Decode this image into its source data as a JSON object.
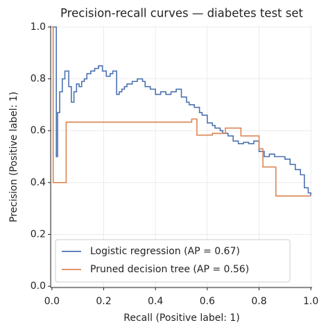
{
  "chart_data": {
    "type": "line",
    "drawstyle": "steps-post",
    "title": "Precision-recall curves — diabetes test set",
    "x_label": "Recall (Positive label: 1)",
    "y_label": "Precision (Positive label: 1)",
    "xlim": [
      -0.005,
      1.005
    ],
    "ylim": [
      -0.005,
      1.005
    ],
    "xticks": [
      {
        "value": 0,
        "label": "0.0"
      },
      {
        "value": 0.2,
        "label": "0.2"
      },
      {
        "value": 0.4,
        "label": "0.4"
      },
      {
        "value": 0.6,
        "label": "0.6"
      },
      {
        "value": 0.8,
        "label": "0.8"
      },
      {
        "value": 1,
        "label": "1.0"
      }
    ],
    "yticks": [
      {
        "value": 0,
        "label": "0.0"
      },
      {
        "value": 0.2,
        "label": "0.2"
      },
      {
        "value": 0.4,
        "label": "0.4"
      },
      {
        "value": 0.6,
        "label": "0.6"
      },
      {
        "value": 0.8,
        "label": "0.8"
      },
      {
        "value": 1,
        "label": "1.0"
      }
    ],
    "grid": true,
    "legend": "lower left",
    "series": [
      {
        "name": "Logistic regression (AP = 0.67)",
        "color": "#4c72b0",
        "x": [
          0,
          0.017,
          0.022,
          0.03,
          0.04,
          0.05,
          0.065,
          0.075,
          0.085,
          0.095,
          0.105,
          0.115,
          0.125,
          0.135,
          0.15,
          0.165,
          0.18,
          0.195,
          0.21,
          0.225,
          0.235,
          0.25,
          0.26,
          0.27,
          0.28,
          0.29,
          0.3,
          0.31,
          0.33,
          0.35,
          0.36,
          0.38,
          0.4,
          0.42,
          0.44,
          0.46,
          0.48,
          0.5,
          0.52,
          0.53,
          0.55,
          0.57,
          0.58,
          0.6,
          0.62,
          0.63,
          0.65,
          0.66,
          0.68,
          0.7,
          0.72,
          0.74,
          0.76,
          0.78,
          0.8,
          0.82,
          0.84,
          0.86,
          0.88,
          0.9,
          0.92,
          0.94,
          0.96,
          0.975,
          0.99,
          1.0
        ],
        "values": [
          1.0,
          0.5,
          0.67,
          0.75,
          0.8,
          0.83,
          0.77,
          0.71,
          0.75,
          0.78,
          0.77,
          0.79,
          0.8,
          0.82,
          0.83,
          0.84,
          0.85,
          0.83,
          0.81,
          0.82,
          0.83,
          0.74,
          0.75,
          0.76,
          0.77,
          0.78,
          0.78,
          0.79,
          0.8,
          0.79,
          0.77,
          0.76,
          0.74,
          0.75,
          0.74,
          0.75,
          0.76,
          0.73,
          0.71,
          0.7,
          0.69,
          0.67,
          0.66,
          0.63,
          0.62,
          0.61,
          0.6,
          0.59,
          0.58,
          0.56,
          0.55,
          0.555,
          0.55,
          0.56,
          0.52,
          0.5,
          0.51,
          0.5,
          0.5,
          0.49,
          0.47,
          0.45,
          0.43,
          0.38,
          0.36,
          0.35
        ]
      },
      {
        "name": "Pruned decision tree (AP = 0.56)",
        "color": "#dd8452",
        "x": [
          0,
          0.005,
          0.055,
          0.54,
          0.56,
          0.62,
          0.67,
          0.73,
          0.8,
          0.815,
          0.865,
          1.0
        ],
        "values": [
          1.0,
          0.4,
          0.633,
          0.645,
          0.583,
          0.59,
          0.61,
          0.58,
          0.53,
          0.46,
          0.348,
          0.348
        ]
      }
    ]
  }
}
